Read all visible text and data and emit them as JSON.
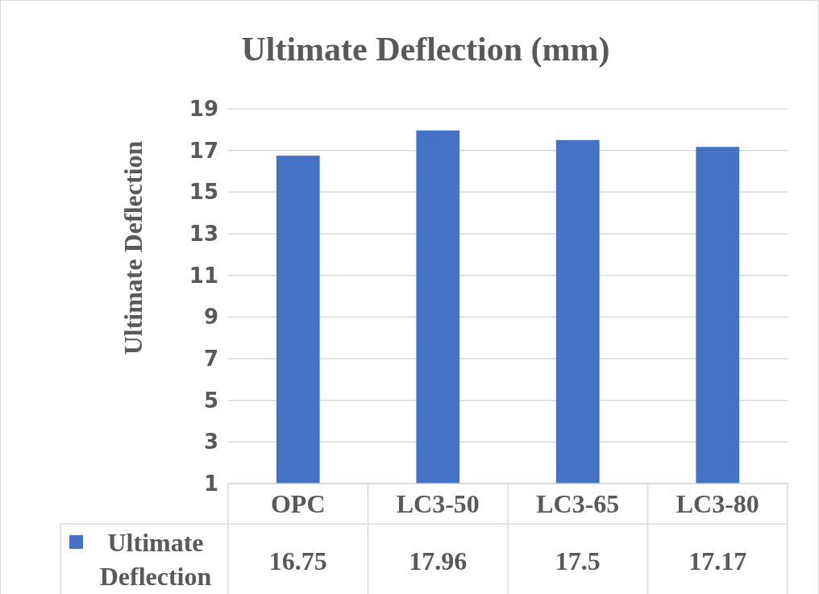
{
  "chart_data": {
    "type": "bar",
    "title": "Ultimate Deflection (mm)",
    "ylabel": "Ultimate Deflection",
    "categories": [
      "OPC",
      "LC3-50",
      "LC3-65",
      "LC3-80"
    ],
    "series": [
      {
        "name": "Ultimate Deflection",
        "color": "#4472c4",
        "values": [
          16.75,
          17.96,
          17.5,
          17.17
        ]
      }
    ],
    "ylim": [
      1,
      19
    ],
    "yticks": [
      1,
      3,
      5,
      7,
      9,
      11,
      13,
      15,
      17,
      19
    ],
    "grid": "y",
    "data_labels": true,
    "legend": "bottom"
  }
}
